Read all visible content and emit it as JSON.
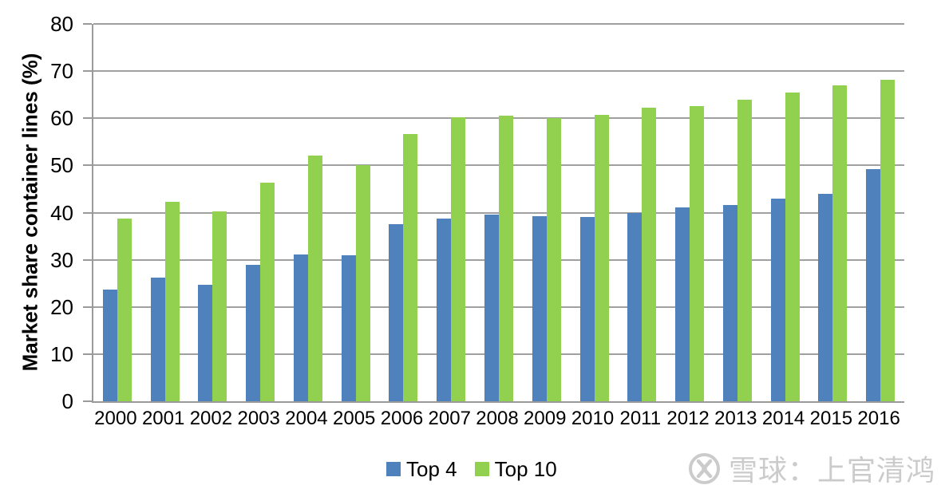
{
  "chart_data": {
    "type": "bar",
    "title": "",
    "xlabel": "",
    "ylabel": "Market share container lines (%)",
    "ylim": [
      0,
      80
    ],
    "yticks": [
      0,
      10,
      20,
      30,
      40,
      50,
      60,
      70,
      80
    ],
    "grid": true,
    "legend_position": "bottom-center",
    "categories": [
      "2000",
      "2001",
      "2002",
      "2003",
      "2004",
      "2005",
      "2006",
      "2007",
      "2008",
      "2009",
      "2010",
      "2011",
      "2012",
      "2013",
      "2014",
      "2015",
      "2016"
    ],
    "series": [
      {
        "name": "Top 4",
        "color": "#4F81BD",
        "values": [
          23.6,
          26.2,
          24.7,
          29.0,
          31.1,
          30.9,
          37.6,
          38.7,
          39.5,
          39.2,
          39.0,
          40.0,
          41.1,
          41.6,
          42.9,
          44.0,
          49.2
        ]
      },
      {
        "name": "Top 10",
        "color": "#92D050",
        "values": [
          38.8,
          42.3,
          40.2,
          46.3,
          52.1,
          50.1,
          56.7,
          60.2,
          60.6,
          60.1,
          60.8,
          62.2,
          62.5,
          63.9,
          65.5,
          67.0,
          68.2
        ]
      }
    ]
  },
  "watermark": {
    "text": "雪球：上官清鸿",
    "logo": "xueqiu-logo",
    "color": "#cbcbcb"
  },
  "axis": {
    "line_color": "#9a9a9a",
    "gridline_color": "#a0a0a0",
    "label_color": "#000000"
  }
}
